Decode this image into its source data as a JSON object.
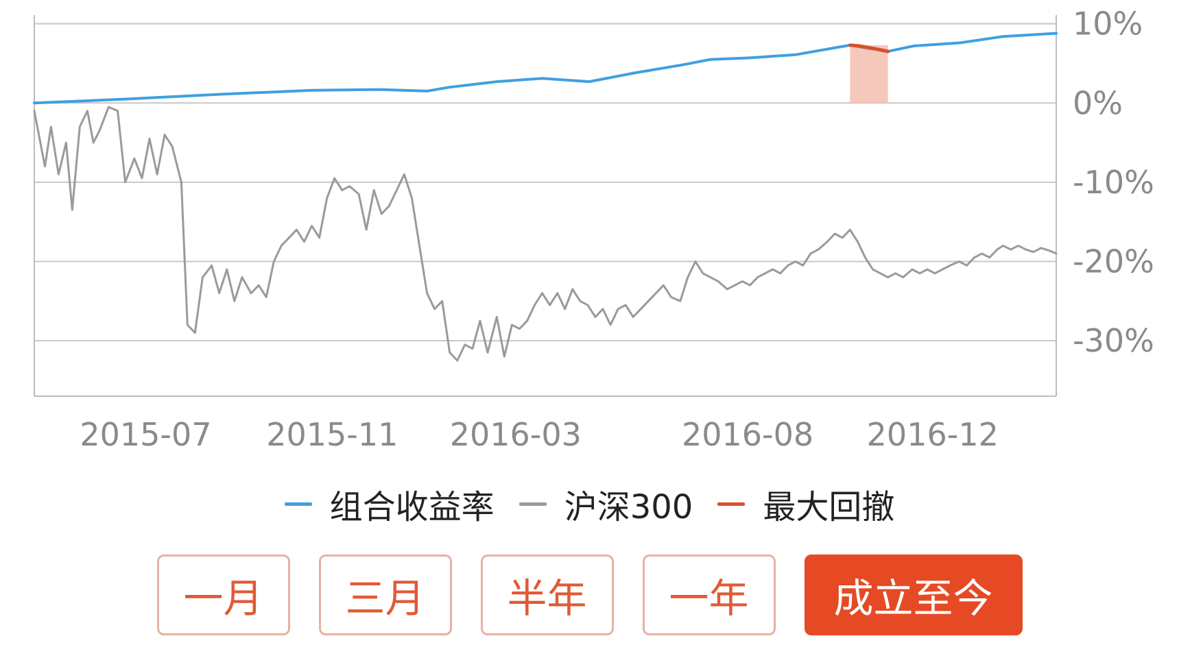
{
  "chart_data": {
    "type": "line",
    "title": "",
    "xlabel": "",
    "ylabel": "",
    "ylim": [
      -37,
      13
    ],
    "yticks": [
      10,
      0,
      -10,
      -20,
      -30
    ],
    "ytick_labels": [
      "10%",
      "0%",
      "-10%",
      "-20%",
      "-30%"
    ],
    "x_ticks": [
      "2015-07",
      "2015-11",
      "2016-03",
      "2016-08",
      "2016-12"
    ],
    "x_tick_dates": [
      "2015-07-01",
      "2015-11-01",
      "2016-03-01",
      "2016-08-01",
      "2016-12-01"
    ],
    "xlim": [
      "2015-06-01",
      "2017-04-05"
    ],
    "grid": true,
    "series": [
      {
        "name": "组合收益率",
        "color": "#3fa0e0",
        "points": [
          [
            "2015-06-01",
            0.0
          ],
          [
            "2015-08-01",
            0.5
          ],
          [
            "2015-10-01",
            1.1
          ],
          [
            "2015-12-01",
            1.6
          ],
          [
            "2016-01-15",
            1.7
          ],
          [
            "2016-02-15",
            1.5
          ],
          [
            "2016-03-01",
            2.0
          ],
          [
            "2016-04-01",
            2.7
          ],
          [
            "2016-05-01",
            3.1
          ],
          [
            "2016-06-01",
            2.7
          ],
          [
            "2016-07-01",
            3.8
          ],
          [
            "2016-08-01",
            4.8
          ],
          [
            "2016-08-20",
            5.5
          ],
          [
            "2016-09-15",
            5.7
          ],
          [
            "2016-10-15",
            6.1
          ],
          [
            "2016-11-20",
            7.3
          ],
          [
            "2016-12-15",
            6.5
          ],
          [
            "2017-01-01",
            7.2
          ],
          [
            "2017-02-01",
            7.6
          ],
          [
            "2017-03-01",
            8.4
          ],
          [
            "2017-04-05",
            8.8
          ]
        ]
      },
      {
        "name": "沪深300",
        "color": "#9a9a9a",
        "points": [
          [
            "2015-06-01",
            -1.0
          ],
          [
            "2015-06-08",
            -8.0
          ],
          [
            "2015-06-12",
            -3.0
          ],
          [
            "2015-06-17",
            -9.0
          ],
          [
            "2015-06-22",
            -5.0
          ],
          [
            "2015-06-26",
            -13.5
          ],
          [
            "2015-07-01",
            -3.0
          ],
          [
            "2015-07-06",
            -1.0
          ],
          [
            "2015-07-10",
            -5.0
          ],
          [
            "2015-07-14",
            -3.5
          ],
          [
            "2015-07-20",
            -0.5
          ],
          [
            "2015-07-26",
            -1.0
          ],
          [
            "2015-07-31",
            -10.0
          ],
          [
            "2015-08-06",
            -7.0
          ],
          [
            "2015-08-11",
            -9.5
          ],
          [
            "2015-08-16",
            -4.5
          ],
          [
            "2015-08-21",
            -9.0
          ],
          [
            "2015-08-26",
            -4.0
          ],
          [
            "2015-08-31",
            -5.5
          ],
          [
            "2015-09-06",
            -10.0
          ],
          [
            "2015-09-10",
            -28.0
          ],
          [
            "2015-09-15",
            -29.0
          ],
          [
            "2015-09-20",
            -22.0
          ],
          [
            "2015-09-26",
            -20.5
          ],
          [
            "2015-10-01",
            -24.0
          ],
          [
            "2015-10-06",
            -21.0
          ],
          [
            "2015-10-11",
            -25.0
          ],
          [
            "2015-10-16",
            -22.0
          ],
          [
            "2015-10-22",
            -24.0
          ],
          [
            "2015-10-27",
            -23.0
          ],
          [
            "2015-11-01",
            -24.5
          ],
          [
            "2015-11-06",
            -20.0
          ],
          [
            "2015-11-11",
            -18.0
          ],
          [
            "2015-11-16",
            -17.0
          ],
          [
            "2015-11-21",
            -16.0
          ],
          [
            "2015-11-26",
            -17.5
          ],
          [
            "2015-12-01",
            -15.5
          ],
          [
            "2015-12-06",
            -17.0
          ],
          [
            "2015-12-11",
            -12.0
          ],
          [
            "2015-12-16",
            -9.5
          ],
          [
            "2015-12-21",
            -11.0
          ],
          [
            "2015-12-26",
            -10.5
          ],
          [
            "2016-01-01",
            -11.5
          ],
          [
            "2016-01-06",
            -16.0
          ],
          [
            "2016-01-11",
            -11.0
          ],
          [
            "2016-01-16",
            -14.0
          ],
          [
            "2016-01-21",
            -13.0
          ],
          [
            "2016-01-26",
            -11.0
          ],
          [
            "2016-01-31",
            -9.0
          ],
          [
            "2016-02-05",
            -12.0
          ],
          [
            "2016-02-10",
            -18.0
          ],
          [
            "2016-02-15",
            -24.0
          ],
          [
            "2016-02-20",
            -26.0
          ],
          [
            "2016-02-25",
            -25.0
          ],
          [
            "2016-03-01",
            -31.5
          ],
          [
            "2016-03-06",
            -32.5
          ],
          [
            "2016-03-11",
            -30.5
          ],
          [
            "2016-03-16",
            -31.0
          ],
          [
            "2016-03-21",
            -27.5
          ],
          [
            "2016-03-26",
            -31.5
          ],
          [
            "2016-04-01",
            -27.0
          ],
          [
            "2016-04-06",
            -32.0
          ],
          [
            "2016-04-11",
            -28.0
          ],
          [
            "2016-04-16",
            -28.5
          ],
          [
            "2016-04-21",
            -27.5
          ],
          [
            "2016-04-26",
            -25.5
          ],
          [
            "2016-05-01",
            -24.0
          ],
          [
            "2016-05-06",
            -25.5
          ],
          [
            "2016-05-11",
            -24.0
          ],
          [
            "2016-05-16",
            -26.0
          ],
          [
            "2016-05-21",
            -23.5
          ],
          [
            "2016-05-26",
            -25.0
          ],
          [
            "2016-05-31",
            -25.5
          ],
          [
            "2016-06-05",
            -27.0
          ],
          [
            "2016-06-10",
            -26.0
          ],
          [
            "2016-06-15",
            -28.0
          ],
          [
            "2016-06-20",
            -26.0
          ],
          [
            "2016-06-25",
            -25.5
          ],
          [
            "2016-06-30",
            -27.0
          ],
          [
            "2016-07-05",
            -26.0
          ],
          [
            "2016-07-10",
            -25.0
          ],
          [
            "2016-07-15",
            -24.0
          ],
          [
            "2016-07-20",
            -23.0
          ],
          [
            "2016-07-25",
            -24.5
          ],
          [
            "2016-07-31",
            -25.0
          ],
          [
            "2016-08-05",
            -22.0
          ],
          [
            "2016-08-10",
            -20.0
          ],
          [
            "2016-08-15",
            -21.5
          ],
          [
            "2016-08-20",
            -22.0
          ],
          [
            "2016-08-25",
            -22.5
          ],
          [
            "2016-08-31",
            -23.5
          ],
          [
            "2016-09-05",
            -23.0
          ],
          [
            "2016-09-10",
            -22.5
          ],
          [
            "2016-09-15",
            -23.0
          ],
          [
            "2016-09-20",
            -22.0
          ],
          [
            "2016-09-25",
            -21.5
          ],
          [
            "2016-09-30",
            -21.0
          ],
          [
            "2016-10-05",
            -21.5
          ],
          [
            "2016-10-10",
            -20.5
          ],
          [
            "2016-10-15",
            -20.0
          ],
          [
            "2016-10-20",
            -20.5
          ],
          [
            "2016-10-25",
            -19.0
          ],
          [
            "2016-10-30",
            -18.5
          ],
          [
            "2016-11-05",
            -17.5
          ],
          [
            "2016-11-10",
            -16.5
          ],
          [
            "2016-11-15",
            -17.0
          ],
          [
            "2016-11-20",
            -16.0
          ],
          [
            "2016-11-25",
            -17.5
          ],
          [
            "2016-11-30",
            -19.5
          ],
          [
            "2016-12-05",
            -21.0
          ],
          [
            "2016-12-10",
            -21.5
          ],
          [
            "2016-12-15",
            -22.0
          ],
          [
            "2016-12-20",
            -21.5
          ],
          [
            "2016-12-25",
            -22.0
          ],
          [
            "2016-12-31",
            -21.0
          ],
          [
            "2017-01-05",
            -21.5
          ],
          [
            "2017-01-10",
            -21.0
          ],
          [
            "2017-01-15",
            -21.5
          ],
          [
            "2017-01-20",
            -21.0
          ],
          [
            "2017-01-25",
            -20.5
          ],
          [
            "2017-01-31",
            -20.0
          ],
          [
            "2017-02-05",
            -20.5
          ],
          [
            "2017-02-10",
            -19.5
          ],
          [
            "2017-02-15",
            -19.0
          ],
          [
            "2017-02-20",
            -19.5
          ],
          [
            "2017-02-25",
            -18.5
          ],
          [
            "2017-03-01",
            -18.0
          ],
          [
            "2017-03-06",
            -18.5
          ],
          [
            "2017-03-11",
            -18.0
          ],
          [
            "2017-03-16",
            -18.5
          ],
          [
            "2017-03-21",
            -18.8
          ],
          [
            "2017-03-26",
            -18.3
          ],
          [
            "2017-03-31",
            -18.6
          ],
          [
            "2017-04-05",
            -19.0
          ]
        ]
      },
      {
        "name": "最大回撤",
        "color": "#d8502a",
        "area_color": "#f3c2b4",
        "points": [
          [
            "2016-11-20",
            7.3
          ],
          [
            "2016-11-26",
            7.2
          ],
          [
            "2016-12-02",
            7.0
          ],
          [
            "2016-12-08",
            6.8
          ],
          [
            "2016-12-15",
            6.5
          ]
        ]
      }
    ]
  },
  "legend": [
    {
      "label": "组合收益率",
      "color": "#3fa0e0"
    },
    {
      "label": "沪深300",
      "color": "#9a9a9a"
    },
    {
      "label": "最大回撤",
      "color": "#d8502a"
    }
  ],
  "range_buttons": {
    "month1": "一月",
    "month3": "三月",
    "halfyear": "半年",
    "year1": "一年",
    "since_inception": "成立至今"
  }
}
